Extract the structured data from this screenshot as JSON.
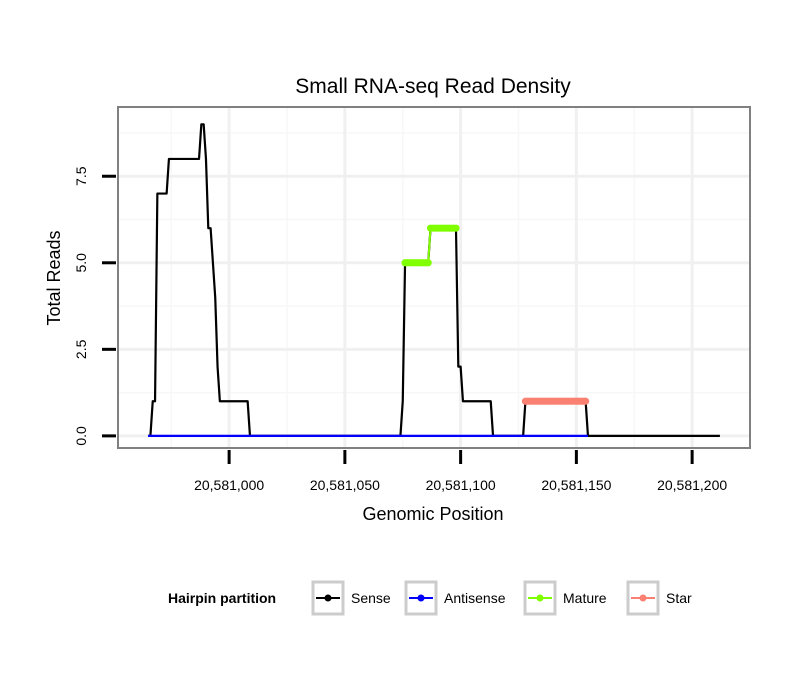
{
  "chart_data": {
    "type": "line",
    "title": "Small RNA-seq Read Density",
    "xlabel": "Genomic Position",
    "ylabel": "Total Reads",
    "xlim": [
      20580952,
      20581225
    ],
    "ylim": [
      -0.35,
      9.5
    ],
    "x_ticks": [
      {
        "value": 20581000,
        "label": "20,581,000"
      },
      {
        "value": 20581050,
        "label": "20,581,050"
      },
      {
        "value": 20581100,
        "label": "20,581,100"
      },
      {
        "value": 20581150,
        "label": "20,581,150"
      },
      {
        "value": 20581200,
        "label": "20,581,200"
      }
    ],
    "y_ticks": [
      {
        "value": 0,
        "label": "0.0"
      },
      {
        "value": 2.5,
        "label": "2.5"
      },
      {
        "value": 5,
        "label": "5.0"
      },
      {
        "value": 7.5,
        "label": "7.5"
      }
    ],
    "grid": true,
    "legend": {
      "title": "Hairpin partition",
      "position": "bottom"
    },
    "series": [
      {
        "name": "Sense",
        "color": "#000000",
        "points_markers": false,
        "points": [
          [
            20580965,
            0
          ],
          [
            20580966,
            0
          ],
          [
            20580967,
            1
          ],
          [
            20580968,
            1
          ],
          [
            20580969,
            7
          ],
          [
            20580970,
            7
          ],
          [
            20580971,
            7
          ],
          [
            20580972,
            7
          ],
          [
            20580973,
            7
          ],
          [
            20580974,
            8
          ],
          [
            20580975,
            8
          ],
          [
            20580976,
            8
          ],
          [
            20580977,
            8
          ],
          [
            20580978,
            8
          ],
          [
            20580979,
            8
          ],
          [
            20580980,
            8
          ],
          [
            20580981,
            8
          ],
          [
            20580982,
            8
          ],
          [
            20580983,
            8
          ],
          [
            20580984,
            8
          ],
          [
            20580985,
            8
          ],
          [
            20580986,
            8
          ],
          [
            20580987,
            8
          ],
          [
            20580988,
            9
          ],
          [
            20580989,
            9
          ],
          [
            20580990,
            8
          ],
          [
            20580991,
            6
          ],
          [
            20580992,
            6
          ],
          [
            20580993,
            5
          ],
          [
            20580994,
            4
          ],
          [
            20580995,
            2
          ],
          [
            20580996,
            1
          ],
          [
            20580997,
            1
          ],
          [
            20580998,
            1
          ],
          [
            20580999,
            1
          ],
          [
            20581000,
            1
          ],
          [
            20581001,
            1
          ],
          [
            20581002,
            1
          ],
          [
            20581003,
            1
          ],
          [
            20581004,
            1
          ],
          [
            20581005,
            1
          ],
          [
            20581006,
            1
          ],
          [
            20581007,
            1
          ],
          [
            20581008,
            1
          ],
          [
            20581009,
            0
          ],
          [
            20581010,
            0
          ],
          [
            20581073,
            0
          ],
          [
            20581074,
            0
          ],
          [
            20581075,
            1
          ],
          [
            20581076,
            5
          ],
          [
            20581086,
            5
          ],
          [
            20581087,
            6
          ],
          [
            20581098,
            6
          ],
          [
            20581099,
            2
          ],
          [
            20581100,
            2
          ],
          [
            20581101,
            1
          ],
          [
            20581113,
            1
          ],
          [
            20581114,
            0
          ],
          [
            20581127,
            0
          ],
          [
            20581128,
            1
          ],
          [
            20581154,
            1
          ],
          [
            20581155,
            0
          ],
          [
            20581212,
            0
          ]
        ]
      },
      {
        "name": "Antisense",
        "color": "#0000ff",
        "points_markers": false,
        "points": [
          [
            20580965,
            0
          ],
          [
            20581009,
            0
          ],
          [
            20581073,
            0
          ],
          [
            20581114,
            0
          ],
          [
            20581127,
            0
          ],
          [
            20581155,
            0
          ]
        ]
      },
      {
        "name": "Mature",
        "color": "#7fff00",
        "points_markers": true,
        "points": [
          [
            20581076,
            5
          ],
          [
            20581077,
            5
          ],
          [
            20581078,
            5
          ],
          [
            20581079,
            5
          ],
          [
            20581080,
            5
          ],
          [
            20581081,
            5
          ],
          [
            20581082,
            5
          ],
          [
            20581083,
            5
          ],
          [
            20581084,
            5
          ],
          [
            20581085,
            5
          ],
          [
            20581086,
            5
          ],
          [
            20581087,
            6
          ],
          [
            20581088,
            6
          ],
          [
            20581089,
            6
          ],
          [
            20581090,
            6
          ],
          [
            20581091,
            6
          ],
          [
            20581092,
            6
          ],
          [
            20581093,
            6
          ],
          [
            20581094,
            6
          ],
          [
            20581095,
            6
          ],
          [
            20581096,
            6
          ],
          [
            20581097,
            6
          ],
          [
            20581098,
            6
          ]
        ]
      },
      {
        "name": "Star",
        "color": "#fa8072",
        "points_markers": true,
        "points": [
          [
            20581128,
            1
          ],
          [
            20581129,
            1
          ],
          [
            20581130,
            1
          ],
          [
            20581131,
            1
          ],
          [
            20581132,
            1
          ],
          [
            20581133,
            1
          ],
          [
            20581134,
            1
          ],
          [
            20581135,
            1
          ],
          [
            20581136,
            1
          ],
          [
            20581137,
            1
          ],
          [
            20581138,
            1
          ],
          [
            20581139,
            1
          ],
          [
            20581140,
            1
          ],
          [
            20581141,
            1
          ],
          [
            20581142,
            1
          ],
          [
            20581143,
            1
          ],
          [
            20581144,
            1
          ],
          [
            20581145,
            1
          ],
          [
            20581146,
            1
          ],
          [
            20581147,
            1
          ],
          [
            20581148,
            1
          ],
          [
            20581149,
            1
          ],
          [
            20581150,
            1
          ],
          [
            20581151,
            1
          ],
          [
            20581152,
            1
          ],
          [
            20581153,
            1
          ],
          [
            20581154,
            1
          ]
        ]
      }
    ]
  }
}
